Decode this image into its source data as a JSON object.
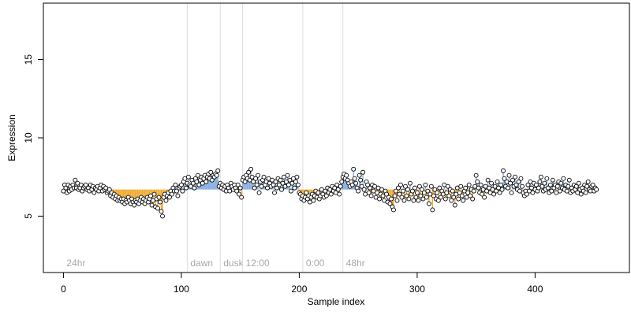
{
  "chart_data": {
    "type": "scatter",
    "xlabel": "Sample index",
    "ylabel": "Expression",
    "xlim": [
      -17,
      480
    ],
    "ylim": [
      1.4,
      18.6
    ],
    "x_ticks": [
      0,
      100,
      200,
      300,
      400
    ],
    "y_ticks": [
      5,
      10,
      15
    ],
    "vertical_markers": [
      {
        "x": 0,
        "label": "24hr",
        "line": false
      },
      {
        "x": 105,
        "label": "dawn",
        "line": true
      },
      {
        "x": 133,
        "label": "dusk",
        "line": true
      },
      {
        "x": 152,
        "label": "12:00",
        "line": true
      },
      {
        "x": 203,
        "label": "0:00",
        "line": true
      },
      {
        "x": 237,
        "label": "48hr",
        "line": true
      }
    ],
    "baseline": 6.7,
    "series": [
      {
        "values": [
          6.6,
          7.0,
          6.8,
          6.5,
          7.0,
          6.6,
          6.9,
          6.7,
          7.0,
          6.8,
          7.3,
          6.8,
          7.1,
          6.7,
          6.8,
          7.0,
          6.6,
          6.8,
          6.9,
          7.0,
          6.7,
          6.8,
          6.6,
          7.0,
          6.7,
          6.9,
          6.5,
          6.8,
          6.7,
          6.9,
          6.6,
          6.8,
          7.0,
          6.6,
          6.9,
          6.7,
          6.8,
          6.5,
          6.6,
          6.7,
          6.3,
          6.5,
          6.2,
          6.4,
          6.1,
          6.3,
          6.0,
          6.2,
          6.0,
          6.1,
          5.9,
          6.1,
          5.8,
          6.0,
          5.9,
          6.2,
          6.0,
          5.8,
          6.1,
          5.9,
          5.7,
          6.0,
          5.9,
          6.1,
          5.8,
          6.0,
          6.2,
          5.9,
          6.1,
          5.8,
          6.0,
          6.2,
          5.9,
          6.1,
          6.3,
          5.7,
          6.0,
          6.4,
          5.6,
          6.1,
          5.5,
          6.2,
          5.9,
          5.3,
          5.0,
          6.2,
          6.4,
          6.0,
          6.3,
          6.5,
          6.2,
          6.6,
          6.4,
          6.8,
          6.6,
          7.0,
          6.6,
          6.3,
          6.8,
          6.9,
          7.0,
          6.6,
          7.2,
          7.4,
          6.8,
          7.1,
          7.5,
          7.0,
          6.9,
          7.3,
          7.1,
          6.8,
          7.4,
          7.2,
          7.6,
          7.0,
          7.3,
          7.5,
          7.1,
          7.4,
          7.6,
          7.2,
          7.5,
          7.7,
          7.4,
          7.8,
          7.3,
          7.6,
          7.5,
          7.7,
          7.6,
          7.9,
          6.9,
          7.1,
          6.8,
          7.0,
          6.7,
          6.9,
          6.6,
          7.0,
          6.8,
          6.6,
          7.1,
          6.9,
          6.7,
          7.0,
          6.8,
          6.6,
          7.0,
          6.4,
          6.8,
          6.2,
          7.3,
          7.5,
          7.2,
          7.6,
          7.4,
          7.8,
          7.3,
          8.0,
          7.5,
          7.2,
          6.8,
          7.4,
          7.0,
          7.6,
          6.5,
          7.2,
          6.9,
          7.3,
          7.5,
          7.0,
          7.2,
          6.8,
          7.4,
          7.1,
          6.9,
          7.3,
          7.0,
          6.5,
          7.2,
          6.8,
          7.4,
          7.0,
          7.3,
          6.7,
          7.1,
          7.5,
          6.9,
          7.2,
          7.6,
          7.0,
          7.3,
          6.6,
          7.1,
          7.4,
          6.8,
          7.2,
          7.5,
          7.0,
          6.5,
          6.4,
          6.1,
          6.3,
          6.0,
          6.2,
          6.5,
          6.1,
          6.3,
          5.9,
          6.2,
          6.4,
          6.0,
          6.3,
          6.6,
          6.2,
          6.5,
          6.1,
          6.3,
          6.7,
          6.4,
          6.2,
          6.6,
          6.3,
          6.8,
          6.5,
          6.7,
          6.4,
          6.9,
          6.6,
          6.8,
          6.5,
          7.0,
          6.7,
          6.4,
          6.9,
          7.2,
          7.5,
          7.7,
          7.4,
          7.6,
          7.3,
          7.1,
          6.9,
          7.2,
          7.0,
          8.0,
          7.4,
          7.1,
          6.8,
          6.6,
          7.6,
          7.3,
          6.9,
          7.8,
          6.7,
          6.4,
          7.2,
          7.0,
          6.5,
          6.8,
          6.3,
          7.0,
          6.6,
          6.9,
          6.2,
          6.5,
          6.8,
          6.1,
          6.4,
          6.7,
          6.3,
          6.0,
          6.6,
          6.4,
          5.9,
          6.2,
          5.8,
          6.1,
          5.6,
          5.4,
          6.3,
          6.6,
          6.0,
          6.8,
          6.4,
          7.0,
          6.2,
          6.6,
          6.0,
          6.9,
          6.3,
          6.7,
          6.1,
          7.1,
          6.4,
          6.6,
          6.0,
          6.8,
          6.2,
          6.5,
          6.0,
          6.9,
          6.3,
          6.7,
          6.1,
          6.5,
          7.0,
          6.2,
          6.6,
          5.8,
          6.4,
          6.9,
          5.4,
          6.3,
          6.7,
          6.1,
          6.5,
          6.0,
          6.8,
          6.2,
          6.6,
          6.4,
          7.0,
          6.1,
          6.5,
          6.9,
          6.3,
          6.7,
          6.0,
          6.6,
          6.2,
          5.7,
          6.4,
          6.8,
          6.1,
          6.5,
          6.9,
          6.3,
          6.0,
          6.6,
          6.8,
          6.2,
          6.5,
          7.0,
          6.3,
          6.7,
          6.1,
          6.6,
          6.9,
          7.6,
          7.2,
          6.8,
          6.5,
          7.0,
          6.4,
          6.7,
          6.2,
          6.9,
          6.6,
          7.3,
          6.8,
          6.5,
          7.1,
          6.7,
          6.4,
          6.9,
          6.6,
          7.2,
          6.8,
          6.5,
          7.0,
          6.7,
          7.9,
          7.4,
          6.9,
          7.2,
          6.8,
          7.6,
          7.1,
          6.5,
          7.3,
          6.9,
          7.5,
          7.0,
          6.7,
          7.2,
          6.6,
          7.4,
          6.9,
          6.5,
          6.3,
          6.6,
          6.4,
          7.0,
          6.6,
          7.2,
          6.8,
          6.5,
          7.1,
          6.7,
          7.0,
          6.6,
          6.8,
          7.2,
          7.5,
          6.9,
          6.6,
          7.1,
          6.7,
          7.4,
          6.8,
          6.5,
          7.0,
          6.6,
          7.3,
          6.8,
          7.0,
          6.5,
          6.9,
          7.2,
          6.6,
          7.1,
          6.8,
          7.4,
          6.7,
          7.0,
          6.6,
          6.9,
          7.3,
          6.5,
          6.8,
          6.6,
          7.0,
          6.7,
          6.9,
          6.5,
          7.1,
          6.7,
          6.4,
          6.8,
          6.6,
          7.0,
          6.5,
          6.9,
          7.2,
          6.7,
          6.6,
          6.9,
          7.0,
          6.6,
          6.8,
          6.7
        ]
      }
    ],
    "stick_colors": {
      "above": "#87aee0",
      "below": "#f0a92e"
    },
    "point_style": {
      "fill": "#ffffff",
      "stroke": "#000000"
    }
  }
}
